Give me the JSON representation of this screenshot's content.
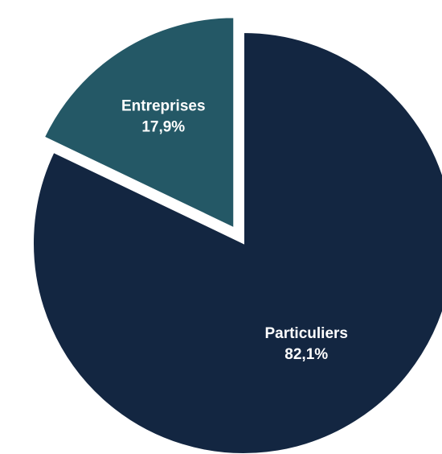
{
  "chart_data": {
    "type": "pie",
    "title": "",
    "slices": [
      {
        "label": "Particuliers",
        "value": 82.1,
        "value_label": "82,1%",
        "color": "#132641",
        "exploded": false
      },
      {
        "label": "Entreprises",
        "value": 17.9,
        "value_label": "17,9%",
        "color": "#245866",
        "exploded": true
      }
    ],
    "legend": "none",
    "start_angle": "12 o'clock, clockwise"
  }
}
